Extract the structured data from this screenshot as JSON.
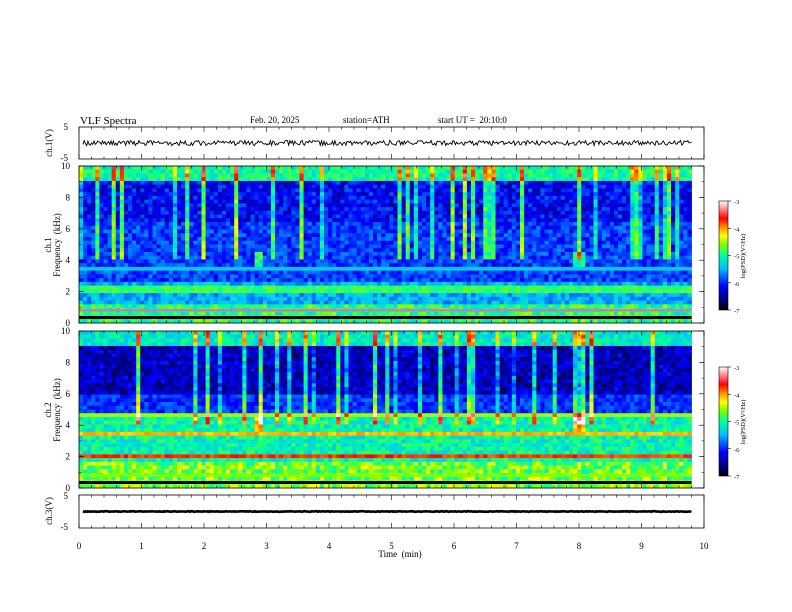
{
  "header": {
    "title": "VLF Spectra",
    "date": "Feb. 20, 2025",
    "station": "station=ATH",
    "start": "start UT =  20:10:0"
  },
  "chart_data": [
    {
      "type": "line",
      "name": "ch1-waveform",
      "ylabel": "ch.1(V)",
      "yticks": [
        5,
        -5
      ],
      "ylim": [
        -5,
        5
      ],
      "xlim": [
        0,
        10
      ],
      "x_end": 9.8,
      "baseline": 0.0,
      "amplitude": 0.8
    },
    {
      "type": "heatmap",
      "name": "ch1-spectrogram",
      "ylabel_top": "ch.1",
      "ylabel": "Frequency  (kHz)",
      "yticks": [
        0,
        2,
        4,
        6,
        8,
        10
      ],
      "ylim": [
        0,
        10
      ],
      "xlim": [
        0,
        10
      ],
      "x_end": 9.8,
      "colorbar": {
        "label": "log(PSD)(V²/Hz)",
        "ticks": [
          -3,
          -4,
          -5,
          -6,
          -7
        ],
        "range": [
          -7,
          -3
        ]
      },
      "bursts_min": [
        2.9,
        8.0
      ]
    },
    {
      "type": "heatmap",
      "name": "ch2-spectrogram",
      "ylabel_top": "ch.2",
      "ylabel": "Frequency  (kHz)",
      "yticks": [
        0,
        2,
        4,
        6,
        8,
        10
      ],
      "ylim": [
        0,
        10
      ],
      "xlim": [
        0,
        10
      ],
      "x_end": 9.8,
      "colorbar": {
        "label": "log(PSD)(V²/Hz)",
        "ticks": [
          -3,
          -4,
          -5,
          -6,
          -7
        ],
        "range": [
          -7,
          -3
        ]
      },
      "bursts_min": [
        2.9,
        8.0
      ]
    },
    {
      "type": "line",
      "name": "ch3-waveform",
      "ylabel": "ch.3(V)",
      "yticks": [
        5,
        -5
      ],
      "ylim": [
        -5,
        5
      ],
      "xlim": [
        0,
        10
      ],
      "x_end": 9.8,
      "baseline": 0.0,
      "amplitude": 0.1
    }
  ],
  "xaxis": {
    "label": "Time  (min)",
    "ticks": [
      0,
      1,
      2,
      3,
      4,
      5,
      6,
      7,
      8,
      9,
      10
    ]
  },
  "colors": {
    "colormap": [
      "#000000",
      "#00008b",
      "#0000ff",
      "#00bfff",
      "#00ff9f",
      "#7fff00",
      "#ffff00",
      "#ff8c00",
      "#ff0000",
      "#ffffff"
    ]
  }
}
